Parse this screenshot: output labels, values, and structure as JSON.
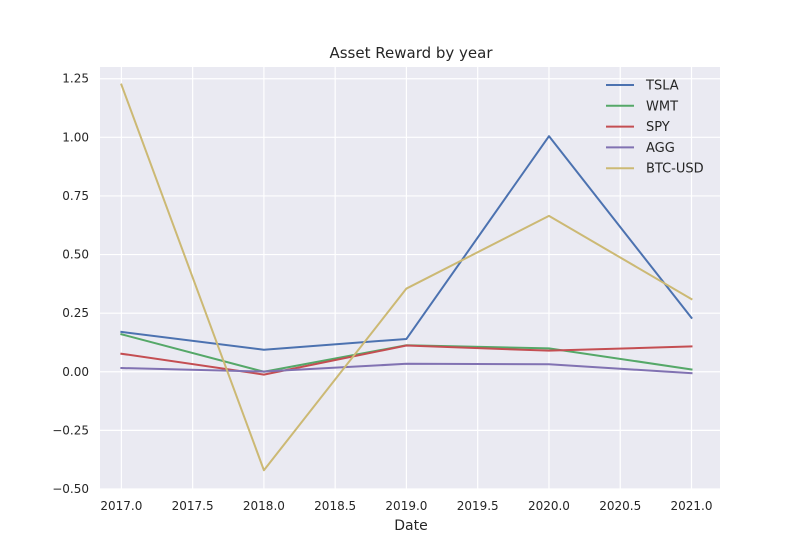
{
  "chart_data": {
    "type": "line",
    "title": "Asset Reward by year",
    "xlabel": "Date",
    "ylabel": "",
    "x": [
      2017,
      2018,
      2019,
      2020,
      2021
    ],
    "xlim": [
      2016.85,
      2021.2
    ],
    "ylim": [
      -0.5,
      1.3
    ],
    "xticks": [
      "2017.0",
      "2017.5",
      "2018.0",
      "2018.5",
      "2019.0",
      "2019.5",
      "2020.0",
      "2020.5",
      "2021.0"
    ],
    "yticks": [
      "−0.50",
      "−0.25",
      "0.00",
      "0.25",
      "0.50",
      "0.75",
      "1.00",
      "1.25"
    ],
    "grid": true,
    "legend_position": "top-right",
    "series": [
      {
        "name": "TSLA",
        "color": "#4c72b0",
        "values": [
          0.17,
          0.094,
          0.14,
          1.005,
          0.23
        ]
      },
      {
        "name": "WMT",
        "color": "#55a868",
        "values": [
          0.16,
          0.0,
          0.113,
          0.1,
          0.01
        ]
      },
      {
        "name": "SPY",
        "color": "#c44e52",
        "values": [
          0.077,
          -0.012,
          0.112,
          0.09,
          0.108
        ]
      },
      {
        "name": "AGG",
        "color": "#8172b2",
        "values": [
          0.016,
          0.001,
          0.034,
          0.032,
          -0.006
        ]
      },
      {
        "name": "BTC-USD",
        "color": "#ccb974",
        "values": [
          1.225,
          -0.42,
          0.355,
          0.665,
          0.31
        ]
      }
    ]
  },
  "colors": {
    "plot_background": "#eaeaf2",
    "grid": "#ffffff",
    "figure_background": "#ffffff"
  }
}
